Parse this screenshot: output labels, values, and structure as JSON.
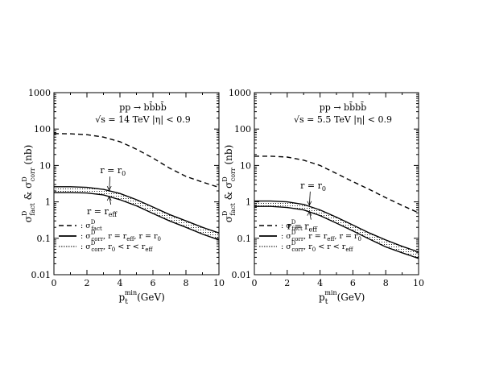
{
  "chart_data": [
    {
      "type": "line",
      "title": "pp → bb̄bb̄",
      "subtitle": "√s = 14 TeV  |η| < 0.9",
      "xlabel": "p_t^min (GeV)",
      "ylabel": "σ^D_fact & σ^D_corr (nb)",
      "xlim": [
        0,
        10
      ],
      "ylim": [
        0.01,
        1000
      ],
      "yscale": "log",
      "xticks": [
        "0",
        "2",
        "4",
        "6",
        "8",
        "10"
      ],
      "yticks": [
        "0.01",
        "0.1",
        "1",
        "10",
        "100",
        "1000"
      ],
      "annotations": [
        "r = r0",
        "r = reff"
      ],
      "legend": {
        "placement": "bottom-left",
        "entries": [
          ": σ^D_fact",
          ": σ^D_corr, r = reff, r = r0",
          ": σ^D_corr, r0 < r < reff"
        ]
      },
      "series": [
        {
          "style": "dashed",
          "x": [
            0,
            1,
            2,
            3,
            4,
            5,
            6,
            7,
            8,
            9,
            10
          ],
          "y": [
            75,
            74,
            70,
            60,
            45,
            28,
            16,
            8.5,
            5,
            3.5,
            2.5
          ]
        },
        {
          "style": "solid",
          "x": [
            0,
            1,
            2,
            3,
            4,
            5,
            6,
            7,
            8,
            9,
            10
          ],
          "y": [
            2.6,
            2.6,
            2.5,
            2.2,
            1.7,
            1.15,
            0.72,
            0.45,
            0.3,
            0.2,
            0.14
          ]
        },
        {
          "style": "solid",
          "x": [
            0,
            1,
            2,
            3,
            4,
            5,
            6,
            7,
            8,
            9,
            10
          ],
          "y": [
            1.8,
            1.8,
            1.75,
            1.55,
            1.15,
            0.78,
            0.48,
            0.3,
            0.2,
            0.13,
            0.09
          ]
        }
      ]
    },
    {
      "type": "line",
      "title": "pp → bb̄bb̄",
      "subtitle": "√s = 5.5 TeV  |η| < 0.9",
      "xlabel": "p_t^min (GeV)",
      "ylabel": "σ^D_fact & σ^D_corr (nb)",
      "xlim": [
        0,
        10
      ],
      "ylim": [
        0.01,
        1000
      ],
      "yscale": "log",
      "xticks": [
        "0",
        "2",
        "4",
        "6",
        "8",
        "10"
      ],
      "yticks": [
        "0.01",
        "0.1",
        "1",
        "10",
        "100",
        "1000"
      ],
      "annotations": [
        "r = r0",
        "r = reff"
      ],
      "legend": {
        "placement": "bottom-left",
        "entries": [
          ": σ^D_fact",
          ": σ^D_corr, r = reff, r = r0",
          ": σ^D_corr, r0 < r < reff"
        ]
      },
      "series": [
        {
          "style": "dashed",
          "x": [
            0,
            1,
            2,
            3,
            4,
            5,
            6,
            7,
            8,
            9,
            10
          ],
          "y": [
            18,
            18,
            17,
            14,
            10,
            6,
            3.6,
            2.2,
            1.3,
            0.8,
            0.5
          ]
        },
        {
          "style": "solid",
          "x": [
            0,
            1,
            2,
            3,
            4,
            5,
            6,
            7,
            8,
            9,
            10
          ],
          "y": [
            1.05,
            1.05,
            1.0,
            0.85,
            0.6,
            0.38,
            0.23,
            0.14,
            0.09,
            0.06,
            0.042
          ]
        },
        {
          "style": "solid",
          "x": [
            0,
            1,
            2,
            3,
            4,
            5,
            6,
            7,
            8,
            9,
            10
          ],
          "y": [
            0.75,
            0.75,
            0.7,
            0.6,
            0.42,
            0.26,
            0.16,
            0.095,
            0.058,
            0.04,
            0.028
          ]
        }
      ]
    }
  ]
}
